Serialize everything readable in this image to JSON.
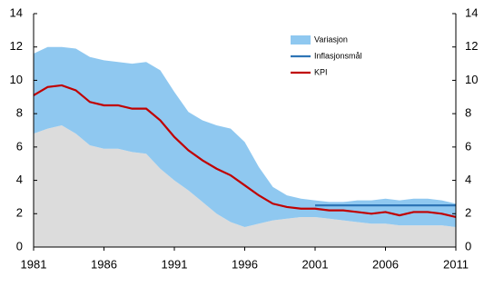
{
  "chart_data": {
    "type": "line",
    "x": [
      1981,
      1982,
      1983,
      1984,
      1985,
      1986,
      1987,
      1988,
      1989,
      1990,
      1991,
      1992,
      1993,
      1994,
      1995,
      1996,
      1997,
      1998,
      1999,
      2000,
      2001,
      2002,
      2003,
      2004,
      2005,
      2006,
      2007,
      2008,
      2009,
      2010,
      2011
    ],
    "band": {
      "name": "Variasjon",
      "color": "#8fc8f0",
      "under_color": "#dcdcdc",
      "upper": [
        11.6,
        12.0,
        12.0,
        11.9,
        11.4,
        11.2,
        11.1,
        11.0,
        11.1,
        10.6,
        9.3,
        8.1,
        7.6,
        7.3,
        7.1,
        6.3,
        4.8,
        3.6,
        3.1,
        2.9,
        2.8,
        2.7,
        2.7,
        2.8,
        2.8,
        2.9,
        2.8,
        2.9,
        2.9,
        2.8,
        2.6
      ],
      "lower": [
        6.8,
        7.1,
        7.3,
        6.8,
        6.1,
        5.9,
        5.9,
        5.7,
        5.6,
        4.7,
        4.0,
        3.4,
        2.7,
        2.0,
        1.5,
        1.2,
        1.4,
        1.6,
        1.7,
        1.8,
        1.8,
        1.7,
        1.6,
        1.5,
        1.4,
        1.4,
        1.3,
        1.3,
        1.3,
        1.3,
        1.2
      ]
    },
    "series": [
      {
        "name": "Inflasjonsmål",
        "color": "#2e75b6",
        "values": [
          null,
          null,
          null,
          null,
          null,
          null,
          null,
          null,
          null,
          null,
          null,
          null,
          null,
          null,
          null,
          null,
          null,
          null,
          null,
          null,
          2.5,
          2.5,
          2.5,
          2.5,
          2.5,
          2.5,
          2.5,
          2.5,
          2.5,
          2.5,
          2.5
        ]
      },
      {
        "name": "KPI",
        "color": "#c00000",
        "values": [
          9.1,
          9.6,
          9.7,
          9.4,
          8.7,
          8.5,
          8.5,
          8.3,
          8.3,
          7.6,
          6.6,
          5.8,
          5.2,
          4.7,
          4.3,
          3.7,
          3.1,
          2.6,
          2.4,
          2.3,
          2.3,
          2.2,
          2.2,
          2.1,
          2.0,
          2.1,
          1.9,
          2.1,
          2.1,
          2.0,
          1.8
        ]
      }
    ],
    "xlim": [
      1981,
      2011
    ],
    "xticks": [
      1981,
      1986,
      1991,
      1996,
      2001,
      2006,
      2011
    ],
    "ylim": [
      0,
      14
    ],
    "yticks": [
      0,
      2,
      4,
      6,
      8,
      10,
      12,
      14
    ],
    "y2lim": [
      0,
      14
    ],
    "y2ticks": [
      0,
      2,
      4,
      6,
      8,
      10,
      12,
      14
    ]
  }
}
